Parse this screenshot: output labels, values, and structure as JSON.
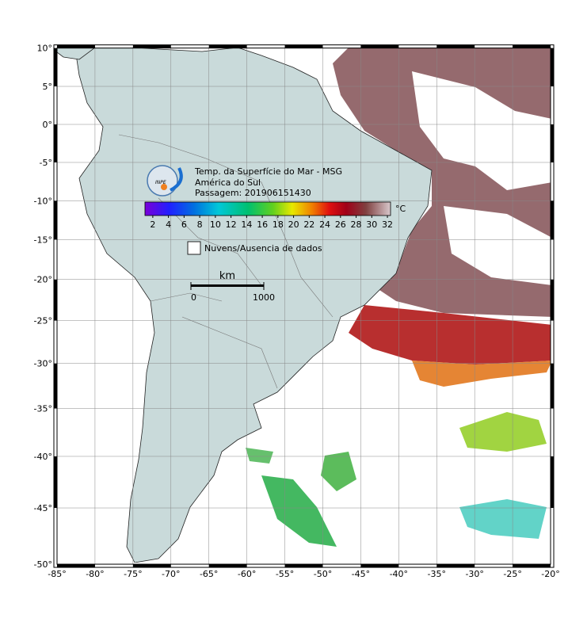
{
  "map": {
    "title_lines": [
      "Temp. da Superfície do Mar - MSG",
      "América do Sul",
      "Passagem: 201906151430"
    ],
    "logo_text": "INPE",
    "colorbar": {
      "unit": "°C",
      "range": [
        1,
        32.4
      ],
      "ticks": [
        2,
        4,
        6,
        8,
        10,
        12,
        14,
        16,
        18,
        20,
        22,
        24,
        26,
        28,
        30,
        32
      ]
    },
    "legend": "Nuvens/Ausencia de dados",
    "scale": {
      "unit": "km",
      "ticks": [
        0,
        1000
      ]
    },
    "lon_range": [
      -85,
      -20
    ],
    "lat_range": [
      -50,
      10
    ],
    "lon_ticks": [
      {
        "value": -85,
        "label": "-85°"
      },
      {
        "value": -80,
        "label": "-80°"
      },
      {
        "value": -75,
        "label": "-75°"
      },
      {
        "value": -70,
        "label": "-70°"
      },
      {
        "value": -65,
        "label": "-65°"
      },
      {
        "value": -60,
        "label": "-60°"
      },
      {
        "value": -55,
        "label": "-55°"
      },
      {
        "value": -50,
        "label": "-50°"
      },
      {
        "value": -45,
        "label": "-45°"
      },
      {
        "value": -40,
        "label": "-40°"
      },
      {
        "value": -35,
        "label": "-35°"
      },
      {
        "value": -30,
        "label": "-30°"
      },
      {
        "value": -25,
        "label": "-25°"
      },
      {
        "value": -20,
        "label": "-20°"
      }
    ],
    "lat_ticks": [
      {
        "value": 10,
        "label": "10°"
      },
      {
        "value": 5,
        "label": "5°"
      },
      {
        "value": 0,
        "label": "0°"
      },
      {
        "value": -5,
        "label": "-5°"
      },
      {
        "value": -10,
        "label": "-10°"
      },
      {
        "value": -15,
        "label": "-15°"
      },
      {
        "value": -20,
        "label": "-20°"
      },
      {
        "value": -25,
        "label": "-25°"
      },
      {
        "value": -30,
        "label": "-30°"
      },
      {
        "value": -35,
        "label": "-35°"
      },
      {
        "value": -40,
        "label": "-40°"
      },
      {
        "value": -45,
        "label": "-45°"
      },
      {
        "value": -50,
        "label": "-50°"
      }
    ]
  }
}
